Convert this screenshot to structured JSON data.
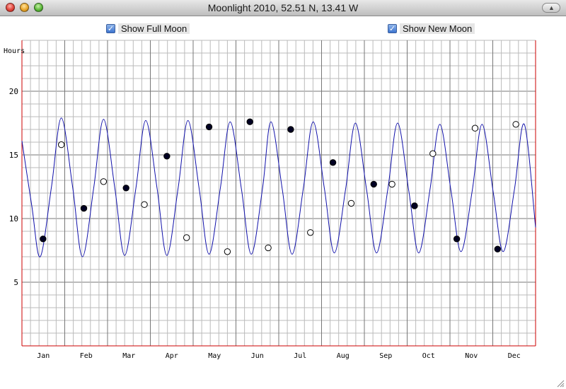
{
  "window": {
    "title": "Moonlight 2010,  52.51 N, 13.41 W"
  },
  "controls": {
    "full_moon": {
      "label": "Show Full Moon",
      "checked": true
    },
    "new_moon": {
      "label": "Show New Moon",
      "checked": true
    }
  },
  "colors": {
    "curve": "#1010aa",
    "axis": "#cc0000",
    "grid_minor": "#bbbbbb",
    "grid_major": "#777777",
    "marker": "#000000"
  },
  "chart_data": {
    "type": "line",
    "ylabel": "Hours",
    "ylim": [
      0,
      24
    ],
    "xlim": [
      0,
      365
    ],
    "y_ticks": [
      5,
      10,
      15,
      20
    ],
    "month_labels": [
      "Jan",
      "Feb",
      "Mar",
      "Apr",
      "May",
      "Jun",
      "Jul",
      "Aug",
      "Sep",
      "Oct",
      "Nov",
      "Dec"
    ],
    "grid": true,
    "series": [
      {
        "x": [
          0,
          7,
          13,
          21,
          28,
          36,
          43,
          51,
          58,
          66,
          73,
          81,
          88,
          96,
          103,
          111,
          118,
          126,
          133,
          141,
          148,
          156,
          163,
          171,
          177,
          185,
          192,
          200,
          207,
          215,
          222,
          230,
          237,
          245,
          252,
          260,
          267,
          275,
          282,
          290,
          297,
          305,
          312,
          320,
          327,
          335,
          342,
          350,
          357,
          365
        ],
        "values": [
          16.1,
          11.0,
          7.0,
          12.5,
          17.9,
          12.5,
          7.0,
          12.4,
          17.8,
          12.4,
          7.1,
          12.4,
          17.7,
          12.4,
          7.1,
          12.4,
          17.7,
          12.3,
          7.2,
          12.4,
          17.6,
          12.3,
          7.2,
          12.4,
          17.6,
          12.3,
          7.2,
          12.4,
          17.6,
          12.3,
          7.3,
          12.3,
          17.5,
          12.2,
          7.3,
          12.3,
          17.5,
          12.1,
          7.3,
          12.3,
          17.4,
          12.1,
          7.4,
          12.2,
          17.4,
          12.0,
          7.4,
          12.3,
          17.4,
          9.3
        ]
      }
    ],
    "full_moon_points": [
      {
        "x": 15,
        "y": 8.4
      },
      {
        "x": 44,
        "y": 10.8
      },
      {
        "x": 74,
        "y": 12.4
      },
      {
        "x": 103,
        "y": 14.9
      },
      {
        "x": 133,
        "y": 17.2
      },
      {
        "x": 162,
        "y": 17.6
      },
      {
        "x": 191,
        "y": 17.0
      },
      {
        "x": 221,
        "y": 14.4
      },
      {
        "x": 250,
        "y": 12.7
      },
      {
        "x": 279,
        "y": 11.0
      },
      {
        "x": 309,
        "y": 8.4
      },
      {
        "x": 338,
        "y": 7.6
      }
    ],
    "new_moon_points": [
      {
        "x": 28,
        "y": 15.8
      },
      {
        "x": 58,
        "y": 12.9
      },
      {
        "x": 87,
        "y": 11.1
      },
      {
        "x": 117,
        "y": 8.5
      },
      {
        "x": 146,
        "y": 7.4
      },
      {
        "x": 175,
        "y": 7.7
      },
      {
        "x": 205,
        "y": 8.9
      },
      {
        "x": 234,
        "y": 11.2
      },
      {
        "x": 263,
        "y": 12.7
      },
      {
        "x": 292,
        "y": 15.1
      },
      {
        "x": 322,
        "y": 17.1
      },
      {
        "x": 351,
        "y": 17.4
      }
    ]
  }
}
